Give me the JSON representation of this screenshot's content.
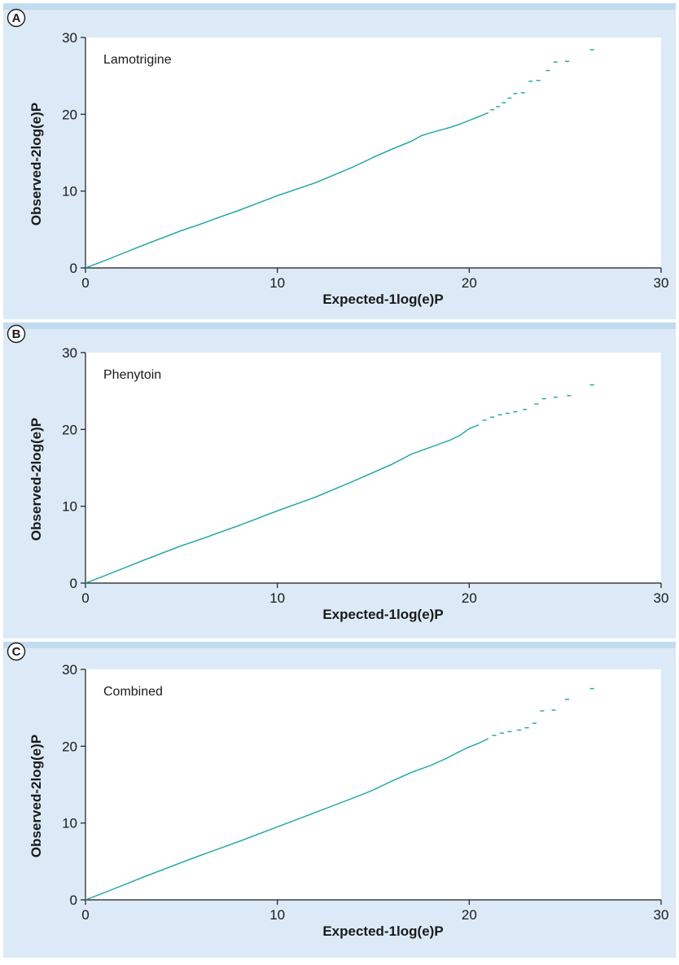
{
  "colors": {
    "panel_background": "#dbeaf6",
    "plot_background": "#ffffff",
    "series": "#17a6a0",
    "axis": "#1a1a1a"
  },
  "chart_data": [
    {
      "type": "line",
      "panel_letter": "A",
      "label": "Lamotrigine",
      "xlabel": "Expected-1log(e)P",
      "ylabel": "Observed-2log(e)P",
      "xlim": [
        0,
        30
      ],
      "ylim": [
        0,
        30
      ],
      "xticks": [
        "0",
        "10",
        "20",
        "30"
      ],
      "yticks": [
        "0",
        "10",
        "20",
        "30"
      ],
      "grid": false,
      "line_points": [
        [
          0,
          0
        ],
        [
          1,
          0.95
        ],
        [
          2,
          1.95
        ],
        [
          3,
          2.95
        ],
        [
          4,
          3.9
        ],
        [
          5,
          4.85
        ],
        [
          6,
          5.7
        ],
        [
          6.8,
          6.45
        ],
        [
          8,
          7.5
        ],
        [
          10,
          9.4
        ],
        [
          12,
          11.1
        ],
        [
          14,
          13.2
        ],
        [
          15,
          14.4
        ],
        [
          16,
          15.5
        ],
        [
          17,
          16.5
        ],
        [
          17.5,
          17.2
        ],
        [
          18,
          17.6
        ],
        [
          19,
          18.3
        ],
        [
          19.5,
          18.7
        ],
        [
          20,
          19.2
        ],
        [
          20.5,
          19.7
        ],
        [
          21,
          20.2
        ]
      ],
      "tail_points": [
        [
          21.2,
          20.6
        ],
        [
          21.5,
          21.0
        ],
        [
          21.8,
          21.5
        ],
        [
          22.1,
          22.1
        ],
        [
          22.4,
          22.7
        ],
        [
          22.8,
          22.8
        ],
        [
          23.2,
          24.3
        ],
        [
          23.6,
          24.4
        ],
        [
          24.1,
          25.7
        ],
        [
          24.5,
          26.8
        ],
        [
          25.1,
          26.9
        ],
        [
          26.4,
          28.4
        ]
      ]
    },
    {
      "type": "line",
      "panel_letter": "B",
      "label": "Phenytoin",
      "xlabel": "Expected-1log(e)P",
      "ylabel": "Observed-2log(e)P",
      "xlim": [
        0,
        30
      ],
      "ylim": [
        0,
        30
      ],
      "xticks": [
        "0",
        "10",
        "20",
        "30"
      ],
      "yticks": [
        "0",
        "10",
        "20",
        "30"
      ],
      "grid": false,
      "line_points": [
        [
          0,
          0
        ],
        [
          1,
          0.95
        ],
        [
          2,
          1.95
        ],
        [
          3,
          2.95
        ],
        [
          4,
          3.9
        ],
        [
          5,
          4.85
        ],
        [
          6,
          5.7
        ],
        [
          7,
          6.6
        ],
        [
          8,
          7.5
        ],
        [
          10,
          9.4
        ],
        [
          12,
          11.2
        ],
        [
          14,
          13.3
        ],
        [
          15,
          14.4
        ],
        [
          16,
          15.5
        ],
        [
          17,
          16.8
        ],
        [
          18,
          17.7
        ],
        [
          19,
          18.6
        ],
        [
          19.5,
          19.2
        ],
        [
          20,
          20.1
        ],
        [
          20.5,
          20.6
        ]
      ],
      "tail_points": [
        [
          20.8,
          21.2
        ],
        [
          21.2,
          21.6
        ],
        [
          21.6,
          21.9
        ],
        [
          22.0,
          22.1
        ],
        [
          22.4,
          22.3
        ],
        [
          22.9,
          22.6
        ],
        [
          23.5,
          23.3
        ],
        [
          23.9,
          24.0
        ],
        [
          24.5,
          24.2
        ],
        [
          25.2,
          24.4
        ],
        [
          26.4,
          25.8
        ]
      ]
    },
    {
      "type": "line",
      "panel_letter": "C",
      "label": "Combined",
      "xlabel": "Expected-1log(e)P",
      "ylabel": "Observed-2log(e)P",
      "xlim": [
        0,
        30
      ],
      "ylim": [
        0,
        30
      ],
      "xticks": [
        "0",
        "10",
        "20",
        "30"
      ],
      "yticks": [
        "0",
        "10",
        "20",
        "30"
      ],
      "grid": false,
      "line_points": [
        [
          0,
          0
        ],
        [
          1,
          0.95
        ],
        [
          2,
          1.95
        ],
        [
          3,
          2.95
        ],
        [
          4,
          3.9
        ],
        [
          5,
          4.85
        ],
        [
          6,
          5.8
        ],
        [
          8,
          7.6
        ],
        [
          10,
          9.5
        ],
        [
          12,
          11.4
        ],
        [
          14,
          13.3
        ],
        [
          15,
          14.3
        ],
        [
          16,
          15.5
        ],
        [
          17,
          16.6
        ],
        [
          18,
          17.5
        ],
        [
          18.8,
          18.4
        ],
        [
          19.5,
          19.3
        ],
        [
          20,
          19.9
        ],
        [
          20.5,
          20.4
        ],
        [
          21,
          21.0
        ]
      ],
      "tail_points": [
        [
          21.3,
          21.4
        ],
        [
          21.7,
          21.7
        ],
        [
          22.1,
          21.9
        ],
        [
          22.6,
          22.1
        ],
        [
          23.0,
          22.4
        ],
        [
          23.4,
          23.0
        ],
        [
          23.8,
          24.6
        ],
        [
          24.4,
          24.7
        ],
        [
          25.1,
          26.1
        ],
        [
          26.4,
          27.5
        ]
      ]
    }
  ]
}
